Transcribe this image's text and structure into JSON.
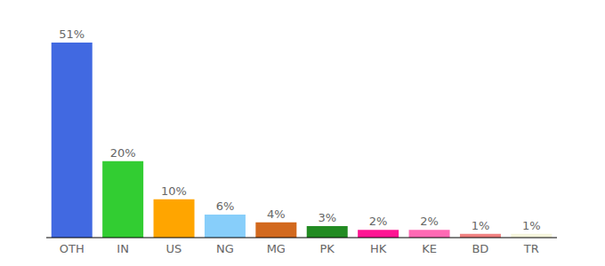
{
  "chart_data": {
    "type": "bar",
    "categories": [
      "OTH",
      "IN",
      "US",
      "NG",
      "MG",
      "PK",
      "HK",
      "KE",
      "BD",
      "TR"
    ],
    "values": [
      51,
      20,
      10,
      6,
      4,
      3,
      2,
      2,
      1,
      1
    ],
    "value_labels": [
      "51%",
      "20%",
      "10%",
      "6%",
      "4%",
      "3%",
      "2%",
      "2%",
      "1%",
      "1%"
    ],
    "colors": [
      "#4169e1",
      "#32cd32",
      "#ffa500",
      "#87cefa",
      "#d2691e",
      "#228b22",
      "#ff1493",
      "#ff69b4",
      "#f08080",
      "#f5f5dc"
    ],
    "ylim": [
      0,
      51
    ],
    "data_labels": true,
    "tick_labels": "x"
  }
}
